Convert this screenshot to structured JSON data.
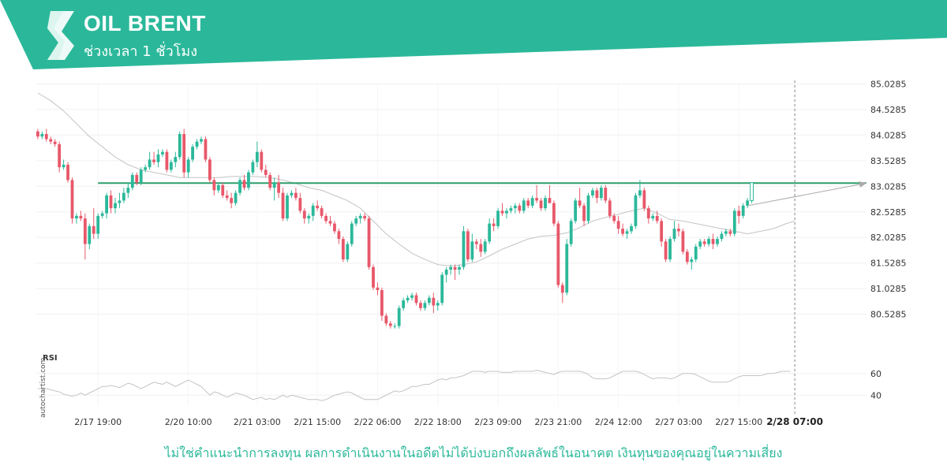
{
  "header": {
    "title": "OIL BRENT",
    "subtitle": "ช่วงเวลา 1 ชั่วโมง",
    "logo_icon": "autochartist-s-logo-icon",
    "banner_color": "#2bb89a"
  },
  "watermark": "autochartist.com",
  "disclaimer": "ไม่ใช่คำแนะนำการลงทุน ผลการดำเนินงานในอดีตไม่ได้บ่งบอกถึงผลลัพธ์ในอนาคต เงินทุนของคุณอยู่ในความเสี่ยง",
  "chart_data": {
    "type": "candlestick",
    "symbol": "OIL BRENT",
    "interval": "1 hour",
    "colors": {
      "up": "#2bb89a",
      "down": "#e8586a",
      "ma": "#c4c4c4",
      "level": "#2e9e6c",
      "projection": "#aaaaaa",
      "rsi": "#c4c4c4"
    },
    "y_ticks": [
      "85.0285",
      "84.5285",
      "84.0285",
      "83.5285",
      "83.0285",
      "82.5285",
      "82.0285",
      "81.5285",
      "81.0285",
      "80.5285"
    ],
    "ylim": [
      80.2,
      85.05
    ],
    "x_ticks": [
      "2/17 19:00",
      "2/20 10:00",
      "2/21 03:00",
      "2/21 15:00",
      "2/22 06:00",
      "2/22 18:00",
      "2/23 09:00",
      "2/23 21:00",
      "2/24 12:00",
      "2/27 03:00",
      "2/27 15:00",
      "2/28 07:00"
    ],
    "highlighted_x_tick": "2/28 07:00",
    "resistance_level": 83.09,
    "projection_target": 83.09,
    "ma_anchors": [
      [
        0,
        84.85
      ],
      [
        3,
        84.7
      ],
      [
        6,
        84.5
      ],
      [
        9,
        84.25
      ],
      [
        12,
        84.0
      ],
      [
        15,
        83.8
      ],
      [
        18,
        83.6
      ],
      [
        21,
        83.45
      ],
      [
        24,
        83.35
      ],
      [
        27,
        83.3
      ],
      [
        30,
        83.25
      ],
      [
        33,
        83.2
      ],
      [
        36,
        83.2
      ],
      [
        39,
        83.2
      ],
      [
        42,
        83.2
      ],
      [
        45,
        83.22
      ],
      [
        48,
        83.22
      ],
      [
        51,
        83.22
      ],
      [
        54,
        83.2
      ],
      [
        57,
        83.15
      ],
      [
        60,
        83.08
      ],
      [
        63,
        83.0
      ],
      [
        66,
        82.95
      ],
      [
        69,
        82.85
      ],
      [
        72,
        82.75
      ],
      [
        75,
        82.6
      ],
      [
        78,
        82.35
      ],
      [
        81,
        82.1
      ],
      [
        84,
        81.9
      ],
      [
        87,
        81.72
      ],
      [
        90,
        81.6
      ],
      [
        93,
        81.5
      ],
      [
        96,
        81.47
      ],
      [
        99,
        81.5
      ],
      [
        102,
        81.55
      ],
      [
        105,
        81.67
      ],
      [
        108,
        81.8
      ],
      [
        111,
        81.9
      ],
      [
        114,
        82.0
      ],
      [
        117,
        82.05
      ],
      [
        120,
        82.07
      ],
      [
        123,
        82.12
      ],
      [
        126,
        82.22
      ],
      [
        129,
        82.35
      ],
      [
        132,
        82.42
      ],
      [
        135,
        82.48
      ],
      [
        138,
        82.55
      ],
      [
        141,
        82.6
      ],
      [
        144,
        82.5
      ],
      [
        147,
        82.38
      ],
      [
        150,
        82.35
      ],
      [
        153,
        82.3
      ],
      [
        156,
        82.25
      ],
      [
        159,
        82.2
      ],
      [
        162,
        82.15
      ],
      [
        165,
        82.1
      ],
      [
        168,
        82.15
      ],
      [
        171,
        82.2
      ],
      [
        174,
        82.3
      ],
      [
        176,
        82.35
      ]
    ],
    "rsi": {
      "label": "RSI",
      "y_ticks": [
        "60",
        "40"
      ],
      "range": [
        30,
        70
      ],
      "values": [
        46,
        46,
        46,
        45,
        44,
        43,
        41,
        40,
        39,
        40,
        42,
        40,
        42,
        44,
        46,
        48,
        48,
        49,
        48,
        47,
        49,
        51,
        50,
        48,
        46,
        48,
        50,
        52,
        51,
        50,
        52,
        50,
        48,
        50,
        52,
        54,
        52,
        50,
        48,
        44,
        40,
        43,
        42,
        40,
        38,
        40,
        42,
        41,
        40,
        38,
        36,
        37,
        38,
        36,
        37,
        36,
        38,
        40,
        38,
        40,
        39,
        38,
        37,
        36,
        36,
        36,
        35,
        36,
        38,
        40,
        41,
        42,
        43,
        42,
        40,
        38,
        36,
        36,
        36,
        36,
        38,
        40,
        42,
        44,
        43,
        44,
        46,
        48,
        48,
        49,
        50,
        50,
        52,
        54,
        55,
        54,
        56,
        56,
        57,
        58,
        60,
        62,
        62,
        62,
        61,
        62,
        62,
        62,
        61,
        61,
        61,
        62,
        62,
        62,
        62,
        62,
        63,
        62,
        61,
        60,
        59,
        61,
        62,
        62,
        62,
        62,
        62,
        61,
        59,
        56,
        55,
        55,
        55,
        56,
        58,
        60,
        62,
        62,
        62,
        62,
        61,
        59,
        57,
        55,
        56,
        56,
        56,
        55,
        56,
        58,
        60,
        60,
        60,
        59,
        57,
        55,
        53,
        52,
        52,
        52,
        52,
        53,
        55,
        57,
        58,
        58,
        58,
        58,
        58,
        59,
        60,
        60,
        61,
        62,
        62,
        62
      ]
    },
    "candles": [
      [
        84.1,
        84.15,
        83.95,
        84.0
      ],
      [
        84.0,
        84.1,
        83.95,
        84.05
      ],
      [
        84.05,
        84.15,
        83.9,
        83.95
      ],
      [
        83.95,
        84.0,
        83.85,
        83.9
      ],
      [
        83.9,
        83.95,
        83.8,
        83.85
      ],
      [
        83.85,
        83.9,
        83.3,
        83.4
      ],
      [
        83.4,
        83.55,
        83.35,
        83.45
      ],
      [
        83.45,
        83.5,
        83.1,
        83.15
      ],
      [
        83.15,
        83.2,
        82.3,
        82.4
      ],
      [
        82.4,
        82.5,
        82.3,
        82.45
      ],
      [
        82.45,
        82.55,
        82.35,
        82.4
      ],
      [
        82.4,
        82.5,
        81.6,
        81.9
      ],
      [
        81.9,
        82.3,
        81.8,
        82.25
      ],
      [
        82.25,
        82.6,
        82.0,
        82.1
      ],
      [
        82.1,
        82.5,
        82.0,
        82.45
      ],
      [
        82.45,
        82.55,
        82.4,
        82.5
      ],
      [
        82.5,
        82.9,
        82.4,
        82.85
      ],
      [
        82.85,
        82.95,
        82.5,
        82.6
      ],
      [
        82.6,
        82.8,
        82.5,
        82.7
      ],
      [
        82.7,
        82.9,
        82.6,
        82.75
      ],
      [
        82.75,
        83.0,
        82.7,
        82.9
      ],
      [
        82.9,
        83.1,
        82.8,
        83.0
      ],
      [
        83.0,
        83.3,
        82.95,
        83.25
      ],
      [
        83.25,
        83.3,
        83.05,
        83.1
      ],
      [
        83.1,
        83.4,
        83.05,
        83.35
      ],
      [
        83.35,
        83.45,
        83.3,
        83.4
      ],
      [
        83.4,
        83.7,
        83.35,
        83.55
      ],
      [
        83.55,
        83.7,
        83.45,
        83.5
      ],
      [
        83.5,
        83.75,
        83.4,
        83.65
      ],
      [
        83.65,
        83.75,
        83.6,
        83.7
      ],
      [
        83.7,
        83.75,
        83.3,
        83.35
      ],
      [
        83.35,
        83.55,
        83.3,
        83.5
      ],
      [
        83.5,
        83.7,
        83.4,
        83.6
      ],
      [
        83.6,
        84.1,
        83.55,
        84.05
      ],
      [
        84.05,
        84.15,
        83.2,
        83.3
      ],
      [
        83.3,
        83.6,
        83.2,
        83.55
      ],
      [
        83.55,
        83.85,
        83.5,
        83.8
      ],
      [
        83.8,
        83.95,
        83.75,
        83.9
      ],
      [
        83.9,
        84.0,
        83.85,
        83.95
      ],
      [
        83.95,
        84.0,
        83.5,
        83.55
      ],
      [
        83.55,
        83.6,
        83.1,
        83.15
      ],
      [
        83.15,
        83.2,
        82.85,
        82.95
      ],
      [
        82.95,
        83.1,
        82.9,
        83.05
      ],
      [
        83.05,
        83.1,
        82.8,
        82.85
      ],
      [
        82.85,
        82.95,
        82.75,
        82.8
      ],
      [
        82.8,
        82.9,
        82.6,
        82.7
      ],
      [
        82.7,
        82.95,
        82.65,
        82.9
      ],
      [
        82.9,
        83.2,
        82.85,
        83.15
      ],
      [
        83.15,
        83.25,
        82.95,
        83.0
      ],
      [
        83.0,
        83.35,
        82.95,
        83.3
      ],
      [
        83.3,
        83.55,
        83.25,
        83.5
      ],
      [
        83.5,
        83.9,
        83.4,
        83.7
      ],
      [
        83.7,
        83.75,
        83.3,
        83.35
      ],
      [
        83.35,
        83.45,
        83.2,
        83.25
      ],
      [
        83.25,
        83.3,
        82.95,
        83.0
      ],
      [
        83.0,
        83.2,
        82.75,
        83.1
      ],
      [
        83.1,
        83.25,
        82.8,
        82.9
      ],
      [
        82.9,
        83.0,
        82.35,
        82.4
      ],
      [
        82.4,
        82.9,
        82.35,
        82.85
      ],
      [
        82.85,
        82.95,
        82.8,
        82.9
      ],
      [
        82.9,
        83.0,
        82.75,
        82.8
      ],
      [
        82.8,
        82.9,
        82.5,
        82.55
      ],
      [
        82.55,
        82.6,
        82.3,
        82.4
      ],
      [
        82.4,
        82.5,
        82.3,
        82.45
      ],
      [
        82.45,
        82.7,
        82.35,
        82.65
      ],
      [
        82.65,
        82.75,
        82.55,
        82.6
      ],
      [
        82.6,
        82.65,
        82.4,
        82.45
      ],
      [
        82.45,
        82.5,
        82.3,
        82.35
      ],
      [
        82.35,
        82.45,
        82.25,
        82.3
      ],
      [
        82.3,
        82.35,
        82.1,
        82.15
      ],
      [
        82.15,
        82.2,
        81.9,
        82.0
      ],
      [
        82.0,
        82.05,
        81.55,
        81.6
      ],
      [
        81.6,
        81.95,
        81.55,
        81.9
      ],
      [
        81.9,
        82.35,
        81.85,
        82.3
      ],
      [
        82.3,
        82.45,
        82.25,
        82.4
      ],
      [
        82.4,
        82.5,
        82.3,
        82.45
      ],
      [
        82.45,
        82.5,
        82.35,
        82.4
      ],
      [
        82.4,
        82.45,
        81.4,
        81.45
      ],
      [
        81.45,
        81.5,
        81.0,
        81.05
      ],
      [
        81.05,
        81.15,
        80.9,
        81.0
      ],
      [
        81.0,
        81.05,
        80.4,
        80.5
      ],
      [
        80.5,
        80.55,
        80.3,
        80.35
      ],
      [
        80.35,
        80.4,
        80.25,
        80.3
      ],
      [
        80.3,
        80.35,
        80.25,
        80.3
      ],
      [
        80.3,
        80.7,
        80.25,
        80.65
      ],
      [
        80.65,
        80.85,
        80.6,
        80.8
      ],
      [
        80.8,
        80.9,
        80.75,
        80.85
      ],
      [
        80.85,
        80.95,
        80.8,
        80.9
      ],
      [
        80.9,
        80.95,
        80.7,
        80.75
      ],
      [
        80.75,
        80.8,
        80.6,
        80.65
      ],
      [
        80.65,
        80.8,
        80.6,
        80.75
      ],
      [
        80.75,
        80.9,
        80.7,
        80.85
      ],
      [
        80.85,
        80.95,
        80.55,
        80.7
      ],
      [
        80.7,
        80.8,
        80.6,
        80.75
      ],
      [
        80.75,
        81.35,
        80.7,
        81.3
      ],
      [
        81.3,
        81.45,
        81.15,
        81.4
      ],
      [
        81.4,
        81.5,
        81.3,
        81.45
      ],
      [
        81.45,
        81.5,
        81.2,
        81.4
      ],
      [
        81.4,
        81.5,
        81.3,
        81.45
      ],
      [
        81.45,
        82.25,
        81.4,
        82.15
      ],
      [
        82.15,
        82.2,
        81.55,
        81.6
      ],
      [
        81.6,
        82.1,
        81.55,
        81.95
      ],
      [
        81.95,
        82.0,
        81.8,
        81.9
      ],
      [
        81.9,
        82.0,
        81.65,
        81.75
      ],
      [
        81.75,
        82.0,
        81.7,
        81.95
      ],
      [
        81.95,
        82.4,
        81.9,
        82.3
      ],
      [
        82.3,
        82.4,
        82.15,
        82.25
      ],
      [
        82.25,
        82.6,
        82.2,
        82.55
      ],
      [
        82.55,
        82.7,
        82.45,
        82.5
      ],
      [
        82.5,
        82.6,
        82.4,
        82.55
      ],
      [
        82.55,
        82.65,
        82.5,
        82.6
      ],
      [
        82.6,
        82.7,
        82.5,
        82.65
      ],
      [
        82.65,
        82.7,
        82.5,
        82.55
      ],
      [
        82.55,
        82.8,
        82.5,
        82.75
      ],
      [
        82.75,
        82.8,
        82.6,
        82.65
      ],
      [
        82.65,
        82.85,
        82.6,
        82.8
      ],
      [
        82.8,
        83.05,
        82.7,
        82.75
      ],
      [
        82.75,
        82.8,
        82.55,
        82.6
      ],
      [
        82.6,
        82.85,
        82.55,
        82.8
      ],
      [
        82.8,
        83.05,
        82.7,
        82.7
      ],
      [
        82.7,
        82.75,
        82.25,
        82.3
      ],
      [
        82.3,
        82.35,
        81.05,
        81.1
      ],
      [
        81.1,
        81.15,
        80.75,
        80.95
      ],
      [
        80.95,
        82.0,
        80.9,
        81.9
      ],
      [
        81.9,
        82.4,
        81.85,
        82.35
      ],
      [
        82.35,
        82.8,
        82.3,
        82.75
      ],
      [
        82.75,
        83.0,
        82.6,
        82.65
      ],
      [
        82.65,
        82.7,
        82.25,
        82.35
      ],
      [
        82.35,
        82.9,
        82.3,
        82.85
      ],
      [
        82.85,
        83.0,
        82.8,
        82.95
      ],
      [
        82.95,
        83.0,
        82.7,
        82.8
      ],
      [
        82.8,
        83.05,
        82.75,
        83.0
      ],
      [
        83.0,
        83.05,
        82.7,
        82.75
      ],
      [
        82.75,
        82.8,
        82.4,
        82.45
      ],
      [
        82.45,
        82.5,
        82.3,
        82.35
      ],
      [
        82.35,
        82.45,
        82.1,
        82.2
      ],
      [
        82.2,
        82.3,
        82.05,
        82.1
      ],
      [
        82.1,
        82.2,
        82.0,
        82.15
      ],
      [
        82.15,
        82.3,
        82.1,
        82.25
      ],
      [
        82.25,
        82.9,
        82.2,
        82.85
      ],
      [
        82.85,
        83.15,
        82.8,
        82.95
      ],
      [
        82.95,
        83.0,
        82.55,
        82.6
      ],
      [
        82.6,
        82.65,
        82.3,
        82.4
      ],
      [
        82.4,
        82.5,
        82.35,
        82.45
      ],
      [
        82.45,
        82.55,
        82.3,
        82.35
      ],
      [
        82.35,
        82.4,
        81.85,
        81.95
      ],
      [
        81.95,
        82.0,
        81.55,
        81.6
      ],
      [
        81.6,
        82.05,
        81.55,
        82.0
      ],
      [
        82.0,
        82.35,
        81.95,
        82.2
      ],
      [
        82.2,
        82.3,
        82.05,
        82.15
      ],
      [
        82.15,
        82.2,
        81.7,
        81.75
      ],
      [
        81.75,
        81.8,
        81.5,
        81.55
      ],
      [
        81.55,
        81.65,
        81.4,
        81.6
      ],
      [
        81.6,
        81.9,
        81.55,
        81.85
      ],
      [
        81.85,
        82.0,
        81.8,
        81.95
      ],
      [
        81.95,
        82.0,
        81.85,
        81.9
      ],
      [
        81.9,
        82.05,
        81.85,
        82.0
      ],
      [
        82.0,
        82.1,
        81.8,
        81.9
      ],
      [
        81.9,
        82.05,
        81.85,
        82.0
      ],
      [
        82.0,
        82.15,
        81.95,
        82.1
      ],
      [
        82.1,
        82.2,
        82.05,
        82.15
      ],
      [
        82.15,
        82.2,
        82.05,
        82.1
      ],
      [
        82.1,
        82.6,
        82.05,
        82.55
      ],
      [
        82.55,
        82.65,
        82.3,
        82.45
      ],
      [
        82.45,
        82.7,
        82.4,
        82.65
      ],
      [
        82.65,
        82.8,
        82.6,
        82.75
      ],
      [
        82.75,
        83.1,
        82.7,
        83.1
      ]
    ]
  }
}
